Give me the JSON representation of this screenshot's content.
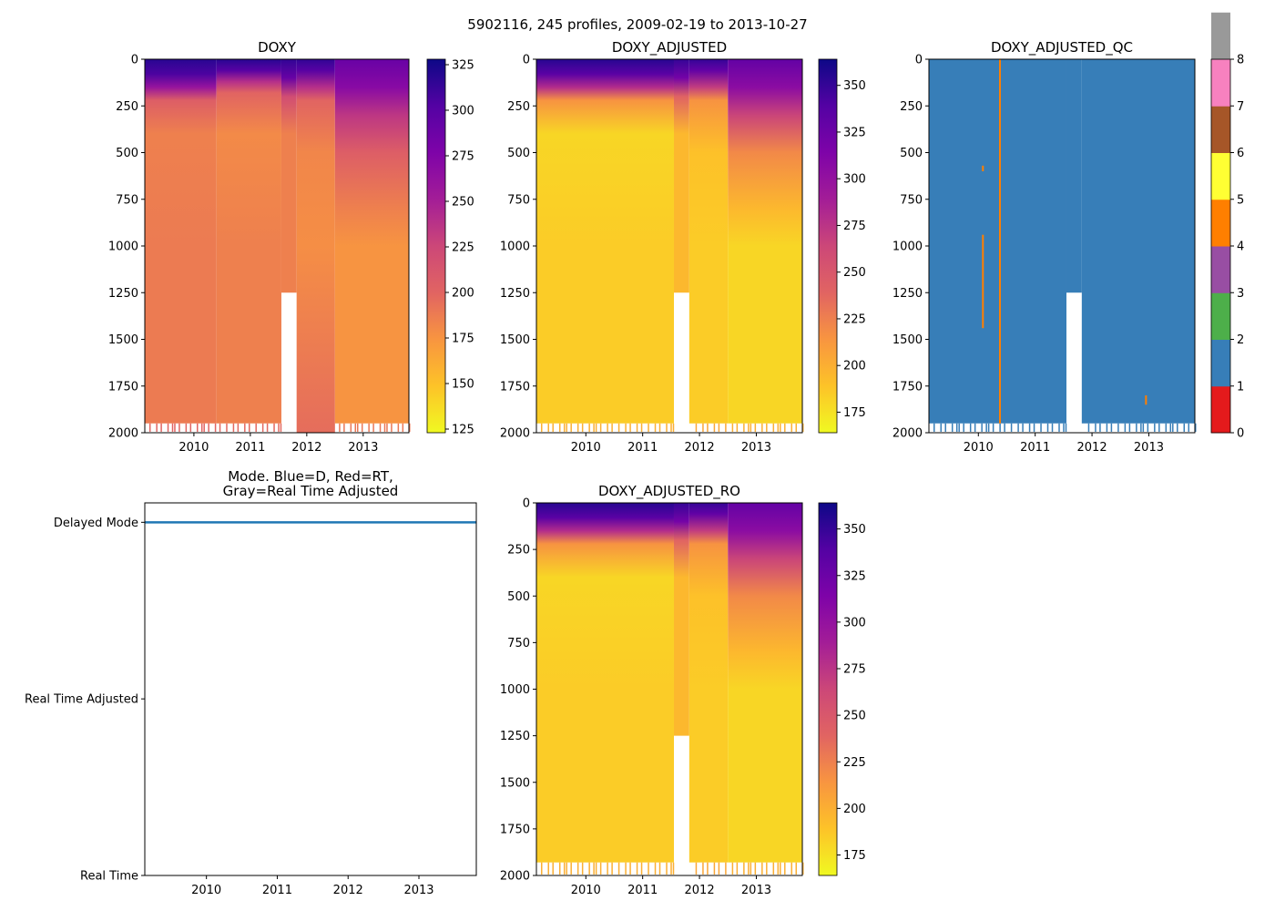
{
  "title": "5902116, 245 profiles, 2009-02-19 to 2013-10-27",
  "chart_data": [
    {
      "type": "heatmap",
      "title": "DOXY",
      "xlim": [
        2009.13,
        2013.81
      ],
      "ylim": [
        2000,
        0
      ],
      "xticks": [
        "2010",
        "2011",
        "2012",
        "2013"
      ],
      "yticks": [
        "0",
        "250",
        "500",
        "750",
        "1000",
        "1250",
        "1500",
        "1750",
        "2000"
      ],
      "colormap": "plasma_r",
      "clim": [
        123,
        328
      ],
      "cbar_ticks": [
        "125",
        "150",
        "175",
        "200",
        "225",
        "250",
        "275",
        "300",
        "325"
      ],
      "segments": [
        {
          "x0": 2009.13,
          "x1": 2010.4,
          "bottom": 1950,
          "profile": [
            [
              0,
              318
            ],
            [
              80,
              305
            ],
            [
              150,
              260
            ],
            [
              220,
              205
            ],
            [
              400,
              185
            ],
            [
              1000,
              188
            ],
            [
              2000,
              200
            ]
          ]
        },
        {
          "x0": 2010.4,
          "x1": 2011.55,
          "bottom": 1950,
          "profile": [
            [
              0,
              318
            ],
            [
              60,
              300
            ],
            [
              120,
              240
            ],
            [
              180,
              200
            ],
            [
              400,
              180
            ],
            [
              1000,
              185
            ],
            [
              2000,
              198
            ]
          ]
        },
        {
          "x0": 2011.55,
          "x1": 2011.82,
          "bottom": 1250,
          "profile": [
            [
              0,
              315
            ],
            [
              100,
              290
            ],
            [
              200,
              220
            ],
            [
              400,
              185
            ],
            [
              2000,
              195
            ]
          ]
        },
        {
          "x0": 2011.82,
          "x1": 2012.5,
          "bottom": 2000,
          "profile": [
            [
              0,
              315
            ],
            [
              60,
              300
            ],
            [
              150,
              240
            ],
            [
              220,
              200
            ],
            [
              500,
              182
            ],
            [
              1000,
              178
            ],
            [
              2000,
              195
            ]
          ]
        },
        {
          "x0": 2012.5,
          "x1": 2013.81,
          "bottom": 1950,
          "profile": [
            [
              0,
              290
            ],
            [
              150,
              270
            ],
            [
              300,
              235
            ],
            [
              500,
              205
            ],
            [
              800,
              185
            ],
            [
              1000,
              175
            ],
            [
              2000,
              190
            ]
          ]
        }
      ]
    },
    {
      "type": "heatmap",
      "title": "DOXY_ADJUSTED",
      "xlim": [
        2009.13,
        2013.81
      ],
      "ylim": [
        2000,
        0
      ],
      "xticks": [
        "2010",
        "2011",
        "2012",
        "2013"
      ],
      "yticks": [
        "0",
        "250",
        "500",
        "750",
        "1000",
        "1250",
        "1500",
        "1750",
        "2000"
      ],
      "colormap": "plasma_r",
      "clim": [
        164,
        364
      ],
      "cbar_ticks": [
        "175",
        "200",
        "225",
        "250",
        "275",
        "300",
        "325",
        "350"
      ],
      "segments": [
        {
          "x0": 2009.13,
          "x1": 2011.55,
          "bottom": 1950,
          "profile": [
            [
              0,
              355
            ],
            [
              80,
              335
            ],
            [
              150,
              280
            ],
            [
              220,
              215
            ],
            [
              400,
              180
            ],
            [
              1000,
              185
            ],
            [
              2000,
              200
            ]
          ]
        },
        {
          "x0": 2011.55,
          "x1": 2011.82,
          "bottom": 1250,
          "profile": [
            [
              0,
              350
            ],
            [
              100,
              320
            ],
            [
              200,
              240
            ],
            [
              400,
              195
            ],
            [
              2000,
              205
            ]
          ]
        },
        {
          "x0": 2011.82,
          "x1": 2012.5,
          "bottom": 1950,
          "profile": [
            [
              0,
              350
            ],
            [
              60,
              330
            ],
            [
              150,
              270
            ],
            [
              220,
              215
            ],
            [
              500,
              190
            ],
            [
              1000,
              185
            ],
            [
              2000,
              205
            ]
          ]
        },
        {
          "x0": 2012.5,
          "x1": 2013.81,
          "bottom": 1950,
          "profile": [
            [
              0,
              330
            ],
            [
              150,
              305
            ],
            [
              300,
              265
            ],
            [
              500,
              220
            ],
            [
              800,
              195
            ],
            [
              1000,
              180
            ],
            [
              2000,
              200
            ]
          ]
        }
      ]
    },
    {
      "type": "heatmap",
      "title": "DOXY_ADJUSTED_QC",
      "xlim": [
        2009.13,
        2013.81
      ],
      "ylim": [
        2000,
        0
      ],
      "xticks": [
        "2010",
        "2011",
        "2012",
        "2013"
      ],
      "yticks": [
        "0",
        "250",
        "500",
        "750",
        "1000",
        "1250",
        "1500",
        "1750",
        "2000"
      ],
      "colormap": "Set1",
      "clim": [
        0,
        8
      ],
      "cbar_ticks": [
        "0",
        "1",
        "2",
        "3",
        "4",
        "5",
        "6",
        "7",
        "8"
      ],
      "category_colors": [
        "#e41a1c",
        "#377eb8",
        "#4daf4a",
        "#984ea3",
        "#ff7f00",
        "#ffff33",
        "#a65628",
        "#f781bf",
        "#999999"
      ],
      "segments": [
        {
          "x0": 2009.13,
          "x1": 2011.55,
          "bottom": 1950,
          "flag": 1
        },
        {
          "x0": 2011.55,
          "x1": 2011.82,
          "bottom": 1250,
          "flag": 1
        },
        {
          "x0": 2011.82,
          "x1": 2013.81,
          "bottom": 1950,
          "flag": 1
        }
      ],
      "flag4_marks": [
        {
          "x": 2010.38,
          "d0": 0,
          "d1": 1950
        },
        {
          "x": 2010.08,
          "d0": 940,
          "d1": 1440
        },
        {
          "x": 2010.08,
          "d0": 570,
          "d1": 600
        },
        {
          "x": 2012.95,
          "d0": 1800,
          "d1": 1850
        }
      ]
    },
    {
      "type": "line",
      "title": "Mode. Blue=D, Red=RT,\nGray=Real Time Adjusted",
      "title_lines": [
        "Mode. Blue=D, Red=RT,",
        "Gray=Real Time Adjusted"
      ],
      "xlim": [
        2009.13,
        2013.81
      ],
      "ylim": [
        0,
        2.11
      ],
      "xticks": [
        "2010",
        "2011",
        "2012",
        "2013"
      ],
      "yticks": [
        "Real Time",
        "Real Time Adjusted",
        "Delayed Mode"
      ],
      "series": [
        {
          "name": "Delayed Mode",
          "color": "#1f77b4",
          "x": [
            2009.13,
            2013.81
          ],
          "y": [
            2,
            2
          ]
        }
      ]
    },
    {
      "type": "heatmap",
      "title": "DOXY_ADJUSTED_RO",
      "xlim": [
        2009.13,
        2013.81
      ],
      "ylim": [
        2000,
        0
      ],
      "xticks": [
        "2010",
        "2011",
        "2012",
        "2013"
      ],
      "yticks": [
        "0",
        "250",
        "500",
        "750",
        "1000",
        "1250",
        "1500",
        "1750",
        "2000"
      ],
      "colormap": "plasma_r",
      "clim": [
        164,
        364
      ],
      "cbar_ticks": [
        "175",
        "200",
        "225",
        "250",
        "275",
        "300",
        "325",
        "350"
      ],
      "segments": [
        {
          "x0": 2009.13,
          "x1": 2011.55,
          "bottom": 1930,
          "profile": [
            [
              0,
              355
            ],
            [
              80,
              335
            ],
            [
              150,
              280
            ],
            [
              220,
              215
            ],
            [
              400,
              180
            ],
            [
              1000,
              185
            ],
            [
              2000,
              200
            ]
          ]
        },
        {
          "x0": 2011.55,
          "x1": 2011.82,
          "bottom": 1250,
          "profile": [
            [
              0,
              350
            ],
            [
              100,
              320
            ],
            [
              200,
              240
            ],
            [
              400,
              195
            ],
            [
              2000,
              205
            ]
          ]
        },
        {
          "x0": 2011.82,
          "x1": 2012.5,
          "bottom": 1930,
          "profile": [
            [
              0,
              350
            ],
            [
              60,
              330
            ],
            [
              150,
              270
            ],
            [
              220,
              215
            ],
            [
              500,
              190
            ],
            [
              1000,
              185
            ],
            [
              2000,
              205
            ]
          ]
        },
        {
          "x0": 2012.5,
          "x1": 2013.81,
          "bottom": 1930,
          "profile": [
            [
              0,
              330
            ],
            [
              150,
              305
            ],
            [
              300,
              265
            ],
            [
              500,
              220
            ],
            [
              800,
              195
            ],
            [
              1000,
              180
            ],
            [
              2000,
              200
            ]
          ]
        }
      ]
    }
  ]
}
